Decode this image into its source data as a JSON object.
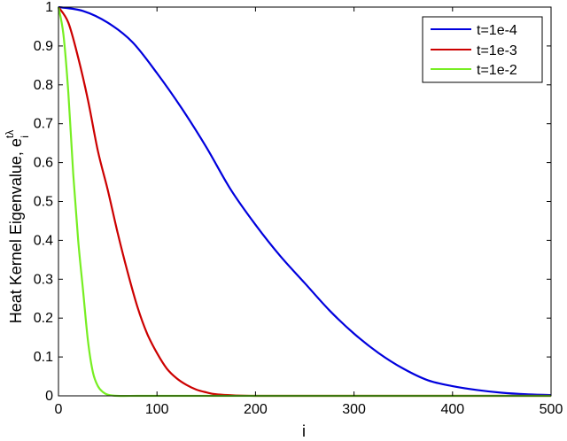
{
  "chart_data": {
    "type": "line",
    "xlabel": "i",
    "ylabel": "Heat Kernel Eigenvalue, e",
    "ylabel_superscript": "tλ",
    "ylabel_subscript": "i",
    "xlim": [
      0,
      500
    ],
    "ylim": [
      0,
      1
    ],
    "xticks": [
      0,
      100,
      200,
      300,
      400,
      500
    ],
    "yticks": [
      0,
      0.1,
      0.2,
      0.3,
      0.4,
      0.5,
      0.6,
      0.7,
      0.8,
      0.9,
      1
    ],
    "grid": false,
    "legend_position": "top-right",
    "series": [
      {
        "name": "t=1e-4",
        "color": "#0000dd",
        "x": [
          0,
          25,
          50,
          75,
          100,
          125,
          150,
          175,
          200,
          225,
          250,
          275,
          300,
          325,
          350,
          375,
          400,
          425,
          450,
          475,
          500
        ],
        "y": [
          1.0,
          0.99,
          0.96,
          0.91,
          0.83,
          0.74,
          0.64,
          0.53,
          0.44,
          0.36,
          0.29,
          0.22,
          0.16,
          0.11,
          0.07,
          0.04,
          0.025,
          0.015,
          0.008,
          0.004,
          0.002
        ]
      },
      {
        "name": "t=1e-3",
        "color": "#cc0000",
        "x": [
          0,
          10,
          20,
          30,
          40,
          50,
          60,
          70,
          80,
          90,
          100,
          110,
          120,
          130,
          140,
          150,
          160,
          180,
          200,
          250,
          300,
          400,
          500
        ],
        "y": [
          1.0,
          0.96,
          0.87,
          0.76,
          0.63,
          0.53,
          0.42,
          0.32,
          0.23,
          0.16,
          0.11,
          0.07,
          0.045,
          0.028,
          0.016,
          0.009,
          0.004,
          0.001,
          0.0,
          0.0,
          0.0,
          0.0,
          0.0
        ]
      },
      {
        "name": "t=1e-2",
        "color": "#77ee22",
        "x": [
          0,
          5,
          10,
          15,
          20,
          25,
          30,
          35,
          40,
          45,
          50,
          60,
          80,
          100,
          200,
          300,
          400,
          500
        ],
        "y": [
          1.0,
          0.93,
          0.78,
          0.57,
          0.4,
          0.27,
          0.14,
          0.06,
          0.025,
          0.01,
          0.003,
          0.0,
          0.0,
          0.0,
          0.0,
          0.0,
          0.0,
          0.0
        ]
      }
    ]
  }
}
